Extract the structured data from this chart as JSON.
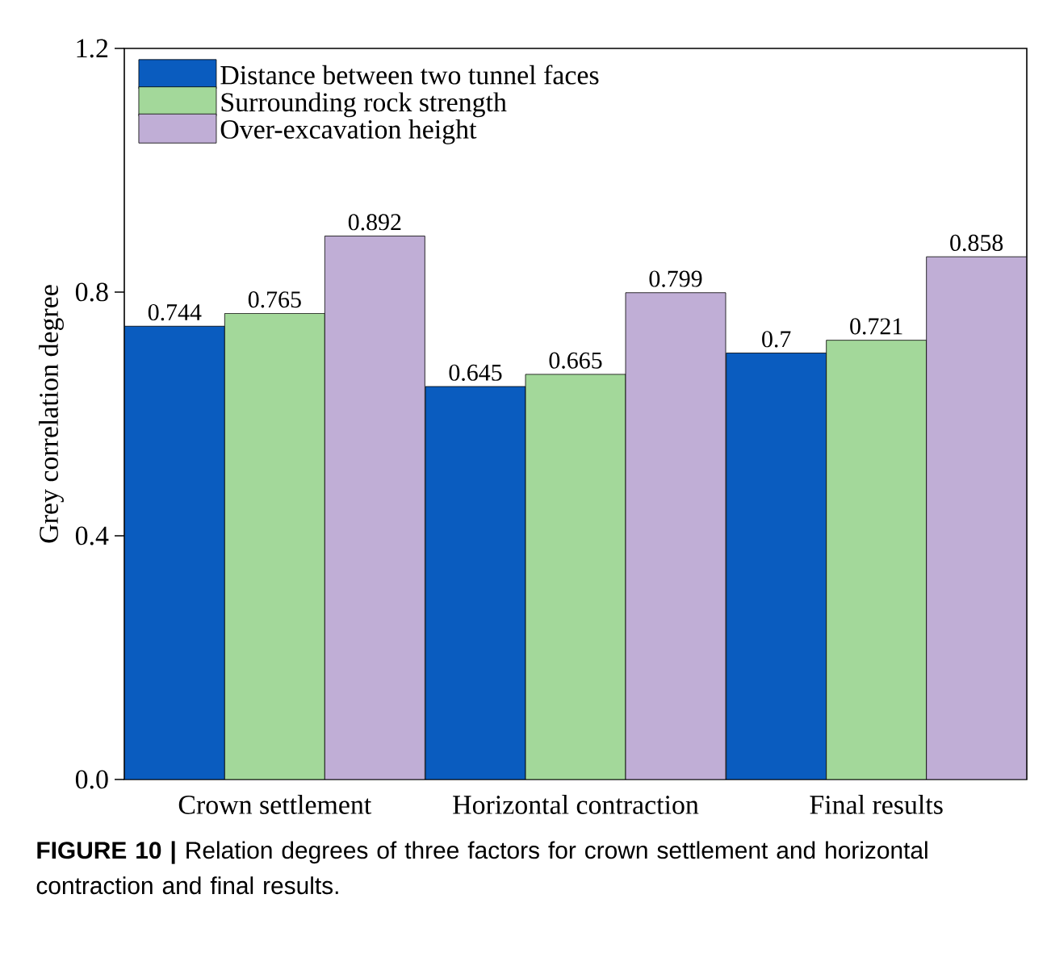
{
  "chart_data": {
    "type": "bar",
    "ylabel": "Grey correlation degree",
    "categories": [
      "Crown settlement",
      "Horizontal contraction",
      "Final results"
    ],
    "series": [
      {
        "name": "Distance between two tunnel faces",
        "color": "#0a5cbf",
        "values": [
          0.744,
          0.645,
          0.7
        ]
      },
      {
        "name": "Surrounding rock strength",
        "color": "#a3d89a",
        "values": [
          0.765,
          0.665,
          0.721
        ]
      },
      {
        "name": "Over-excavation height",
        "color": "#c0aed6",
        "values": [
          0.892,
          0.799,
          0.858
        ]
      }
    ],
    "ylim": [
      0,
      1.2
    ],
    "yticks": [
      {
        "value": 0,
        "label": "0.0"
      },
      {
        "value": 0.4,
        "label": "0.4"
      },
      {
        "value": 0.8,
        "label": "0.8"
      },
      {
        "value": 1.2,
        "label": "1.2"
      }
    ],
    "data_labels": true,
    "legend": "top left",
    "annotations": [
      "**FIGURE 10 |** Relation degrees of three factors for crown settlement and horizontal contraction and final results."
    ]
  }
}
